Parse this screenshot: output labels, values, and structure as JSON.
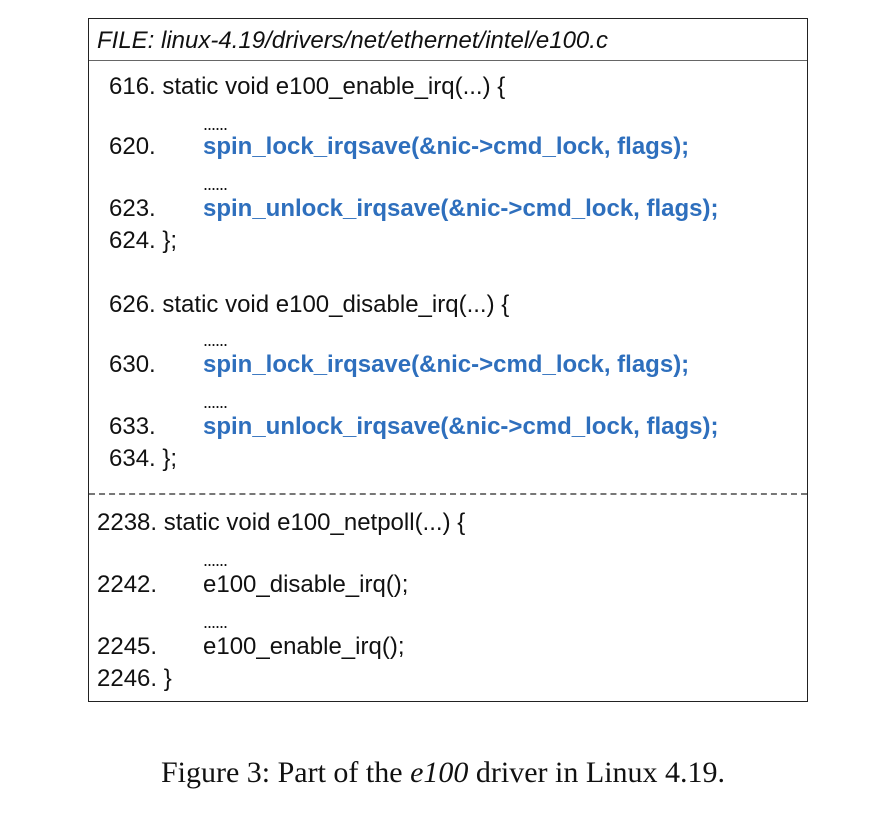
{
  "header": {
    "file_label": "FILE: linux-4.19/drivers/net/ethernet/intel/e100.c"
  },
  "enable_irq": {
    "signature": "616. static void e100_enable_irq(...) {",
    "dots_1": "......",
    "line_620_no": "620.",
    "line_620_code": "spin_lock_irqsave(&nic->cmd_lock, flags);",
    "dots_2": "......",
    "line_623_no": "623.",
    "line_623_code": "spin_unlock_irqsave(&nic->cmd_lock, flags);",
    "closing": "624. };"
  },
  "disable_irq": {
    "signature": "626. static void e100_disable_irq(...) {",
    "dots_1": "......",
    "line_630_no": "630.",
    "line_630_code": "spin_lock_irqsave(&nic->cmd_lock, flags);",
    "dots_2": "......",
    "line_633_no": "633.",
    "line_633_code": "spin_unlock_irqsave(&nic->cmd_lock, flags);",
    "closing": "634. };"
  },
  "netpoll": {
    "signature": "2238. static void e100_netpoll(...) {",
    "dots_1": "......",
    "line_2242_no": "2242.",
    "line_2242_code": "e100_disable_irq();",
    "dots_2": "......",
    "line_2245_no": "2245.",
    "line_2245_code": "e100_enable_irq();",
    "closing": "2246. }"
  },
  "caption": {
    "prefix": "Figure 3: Part of the ",
    "emphasis": "e100",
    "suffix": " driver in Linux 4.19."
  },
  "colors": {
    "highlight": "#2e6fbd",
    "text": "#111111"
  }
}
